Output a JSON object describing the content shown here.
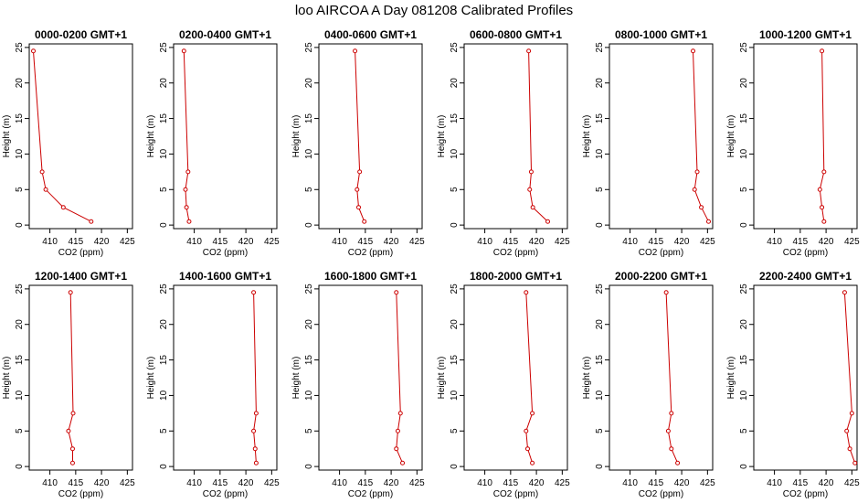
{
  "figure_title": "loo AIRCOA A  Day 081208  Calibrated Profiles",
  "chart_data": {
    "type": "line",
    "title": "loo AIRCOA A  Day 081208  Calibrated Profiles",
    "xlabel": "CO2 (ppm)",
    "ylabel": "Height (m)",
    "xlim": [
      406,
      426
    ],
    "ylim": [
      -0.5,
      25.5
    ],
    "xticks": [
      410,
      415,
      420,
      425
    ],
    "yticks": [
      0,
      5,
      10,
      15,
      20,
      25
    ],
    "line_color": "#cc0000",
    "grid": false,
    "heights": [
      24.5,
      7.5,
      5.0,
      2.5,
      0.5
    ],
    "panels": [
      {
        "title": "0000-0200 GMT+1",
        "co2": [
          406.8,
          408.5,
          409.2,
          412.6,
          418.0
        ]
      },
      {
        "title": "0200-0400 GMT+1",
        "co2": [
          408.0,
          408.8,
          408.3,
          408.5,
          409.0
        ]
      },
      {
        "title": "0400-0600 GMT+1",
        "co2": [
          413.0,
          413.9,
          413.4,
          413.7,
          414.8
        ]
      },
      {
        "title": "0600-0800 GMT+1",
        "co2": [
          418.5,
          419.0,
          418.7,
          419.3,
          422.2
        ]
      },
      {
        "title": "0800-1000 GMT+1",
        "co2": [
          422.2,
          423.0,
          422.5,
          423.8,
          425.2
        ]
      },
      {
        "title": "1000-1200 GMT+1",
        "co2": [
          419.2,
          419.6,
          418.8,
          419.2,
          419.6
        ]
      },
      {
        "title": "1200-1400 GMT+1",
        "co2": [
          414.0,
          414.5,
          413.6,
          414.4,
          414.4
        ]
      },
      {
        "title": "1400-1600 GMT+1",
        "co2": [
          421.5,
          422.0,
          421.5,
          421.8,
          422.0
        ]
      },
      {
        "title": "1600-1800 GMT+1",
        "co2": [
          421.0,
          421.8,
          421.3,
          421.0,
          422.2
        ]
      },
      {
        "title": "1800-2000 GMT+1",
        "co2": [
          418.0,
          419.2,
          418.0,
          418.3,
          419.2
        ]
      },
      {
        "title": "2000-2200 GMT+1",
        "co2": [
          417.0,
          418.0,
          417.4,
          418.0,
          419.2
        ]
      },
      {
        "title": "2200-2400 GMT+1",
        "co2": [
          423.6,
          425.0,
          424.0,
          424.6,
          425.6
        ]
      }
    ]
  }
}
